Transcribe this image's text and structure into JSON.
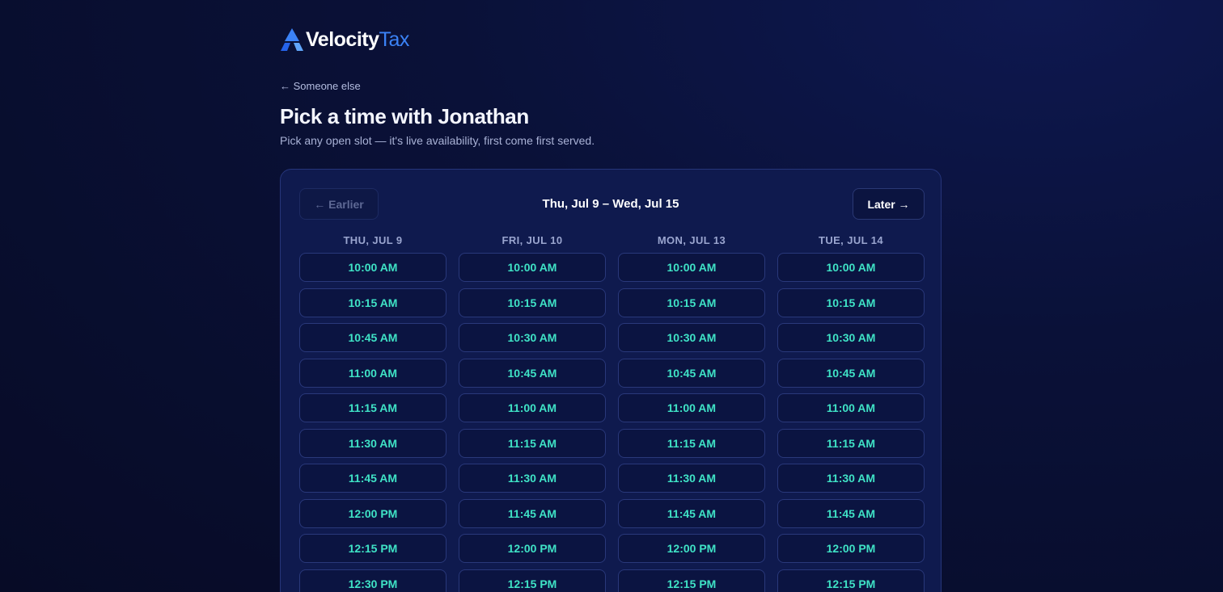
{
  "logo": {
    "primary": "Velocity",
    "secondary": "Tax"
  },
  "back_link": "← Someone else",
  "title": "Pick a time with Jonathan",
  "subtitle": "Pick any open slot — it's live availability, first come first served.",
  "scheduler": {
    "earlier": "← Earlier",
    "range": "Thu, Jul 9 – Wed, Jul 15",
    "later": "Later →",
    "columns": [
      {
        "day": "THU, JUL 9",
        "slots": [
          "10:00 AM",
          "10:15 AM",
          "10:45 AM",
          "11:00 AM",
          "11:15 AM",
          "11:30 AM",
          "11:45 AM",
          "12:00 PM",
          "12:15 PM",
          "12:30 PM"
        ]
      },
      {
        "day": "FRI, JUL 10",
        "slots": [
          "10:00 AM",
          "10:15 AM",
          "10:30 AM",
          "10:45 AM",
          "11:00 AM",
          "11:15 AM",
          "11:30 AM",
          "11:45 AM",
          "12:00 PM",
          "12:15 PM"
        ]
      },
      {
        "day": "MON, JUL 13",
        "slots": [
          "10:00 AM",
          "10:15 AM",
          "10:30 AM",
          "10:45 AM",
          "11:00 AM",
          "11:15 AM",
          "11:30 AM",
          "11:45 AM",
          "12:00 PM",
          "12:15 PM"
        ]
      },
      {
        "day": "TUE, JUL 14",
        "slots": [
          "10:00 AM",
          "10:15 AM",
          "10:30 AM",
          "10:45 AM",
          "11:00 AM",
          "11:15 AM",
          "11:30 AM",
          "11:45 AM",
          "12:00 PM",
          "12:15 PM"
        ]
      }
    ]
  }
}
